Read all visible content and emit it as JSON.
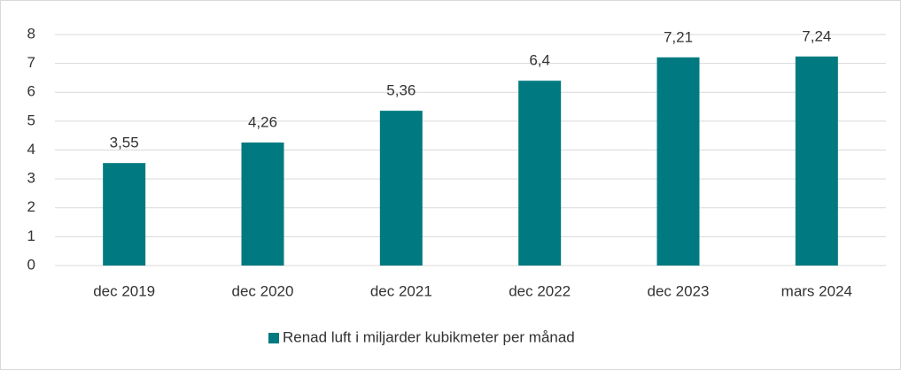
{
  "chart_data": {
    "type": "bar",
    "categories": [
      "dec 2019",
      "dec 2020",
      "dec 2021",
      "dec 2022",
      "dec 2023",
      "mars 2024"
    ],
    "series": [
      {
        "name": "Renad luft i miljarder kubikmeter per månad",
        "color": "#007a80",
        "values": [
          3.55,
          4.26,
          5.36,
          6.4,
          7.21,
          7.24
        ],
        "value_labels": [
          "3,55",
          "4,26",
          "5,36",
          "6,4",
          "7,21",
          "7,24"
        ]
      }
    ],
    "ylim": [
      0,
      8
    ],
    "yticks": [
      0,
      1,
      2,
      3,
      4,
      5,
      6,
      7,
      8
    ],
    "grid": true,
    "legend": "bottom"
  }
}
